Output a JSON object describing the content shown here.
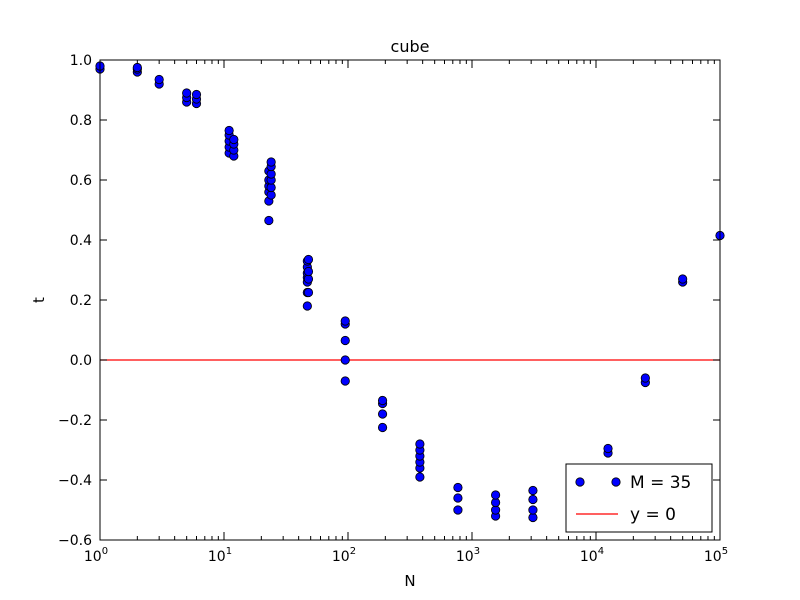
{
  "chart_data": {
    "type": "scatter",
    "title": "cube",
    "xlabel": "N",
    "ylabel": "t",
    "xscale": "log",
    "xlim": [
      1,
      100000
    ],
    "ylim": [
      -0.6,
      1.0
    ],
    "grid": false,
    "legend_position": "lower-right",
    "x_ticks": [
      {
        "value": 1,
        "base": "10",
        "exp": "0"
      },
      {
        "value": 10,
        "base": "10",
        "exp": "1"
      },
      {
        "value": 100,
        "base": "10",
        "exp": "2"
      },
      {
        "value": 1000,
        "base": "10",
        "exp": "3"
      },
      {
        "value": 10000,
        "base": "10",
        "exp": "4"
      },
      {
        "value": 100000,
        "base": "10",
        "exp": "5"
      }
    ],
    "y_ticks": [
      {
        "value": 1.0,
        "label": "1.0"
      },
      {
        "value": 0.8,
        "label": "0.8"
      },
      {
        "value": 0.6,
        "label": "0.6"
      },
      {
        "value": 0.4,
        "label": "0.4"
      },
      {
        "value": 0.2,
        "label": "0.2"
      },
      {
        "value": 0.0,
        "label": "0.0"
      },
      {
        "value": -0.2,
        "label": "−0.2"
      },
      {
        "value": -0.4,
        "label": "−0.4"
      },
      {
        "value": -0.6,
        "label": "−0.6"
      }
    ],
    "series": [
      {
        "name": "M = 35",
        "kind": "markers",
        "color": "#0000ff",
        "points": [
          [
            1,
            0.97
          ],
          [
            1,
            0.98
          ],
          [
            2,
            0.96
          ],
          [
            2,
            0.97
          ],
          [
            2,
            0.975
          ],
          [
            3,
            0.92
          ],
          [
            3,
            0.935
          ],
          [
            5,
            0.86
          ],
          [
            5,
            0.875
          ],
          [
            5,
            0.89
          ],
          [
            6,
            0.855
          ],
          [
            6,
            0.87
          ],
          [
            6,
            0.885
          ],
          [
            11,
            0.69
          ],
          [
            11,
            0.71
          ],
          [
            11,
            0.73
          ],
          [
            11,
            0.75
          ],
          [
            11,
            0.765
          ],
          [
            12,
            0.68
          ],
          [
            12,
            0.7
          ],
          [
            12,
            0.72
          ],
          [
            12,
            0.735
          ],
          [
            23,
            0.465
          ],
          [
            23,
            0.53
          ],
          [
            23,
            0.56
          ],
          [
            23,
            0.58
          ],
          [
            23,
            0.6
          ],
          [
            23,
            0.63
          ],
          [
            24,
            0.55
          ],
          [
            24,
            0.575
          ],
          [
            24,
            0.6
          ],
          [
            24,
            0.62
          ],
          [
            24,
            0.645
          ],
          [
            24,
            0.66
          ],
          [
            47,
            0.18
          ],
          [
            47,
            0.225
          ],
          [
            47,
            0.26
          ],
          [
            47,
            0.275
          ],
          [
            47,
            0.29
          ],
          [
            47,
            0.31
          ],
          [
            47,
            0.33
          ],
          [
            48,
            0.225
          ],
          [
            48,
            0.27
          ],
          [
            48,
            0.295
          ],
          [
            48,
            0.335
          ],
          [
            95,
            -0.07
          ],
          [
            95,
            0.0
          ],
          [
            95,
            0.065
          ],
          [
            95,
            0.12
          ],
          [
            95,
            0.13
          ],
          [
            190,
            -0.225
          ],
          [
            190,
            -0.18
          ],
          [
            190,
            -0.145
          ],
          [
            190,
            -0.135
          ],
          [
            380,
            -0.39
          ],
          [
            380,
            -0.36
          ],
          [
            380,
            -0.34
          ],
          [
            380,
            -0.32
          ],
          [
            380,
            -0.3
          ],
          [
            380,
            -0.28
          ],
          [
            770,
            -0.5
          ],
          [
            770,
            -0.46
          ],
          [
            770,
            -0.425
          ],
          [
            1550,
            -0.52
          ],
          [
            1550,
            -0.5
          ],
          [
            1550,
            -0.475
          ],
          [
            1550,
            -0.45
          ],
          [
            3100,
            -0.525
          ],
          [
            3100,
            -0.5
          ],
          [
            3100,
            -0.465
          ],
          [
            3100,
            -0.435
          ],
          [
            6200,
            -0.45
          ],
          [
            6200,
            -0.435
          ],
          [
            12500,
            -0.31
          ],
          [
            12500,
            -0.295
          ],
          [
            25000,
            -0.075
          ],
          [
            25000,
            -0.06
          ],
          [
            50000,
            0.26
          ],
          [
            50000,
            0.27
          ],
          [
            100000,
            0.415
          ]
        ]
      },
      {
        "name": "y = 0",
        "kind": "line",
        "color": "#ff0000",
        "x": [
          1,
          100000
        ],
        "y": [
          0,
          0
        ]
      }
    ],
    "legend": [
      {
        "label": "M = 35",
        "kind": "marker",
        "color": "#0000ff"
      },
      {
        "label": "y = 0",
        "kind": "line",
        "color": "#ff0000"
      }
    ]
  }
}
